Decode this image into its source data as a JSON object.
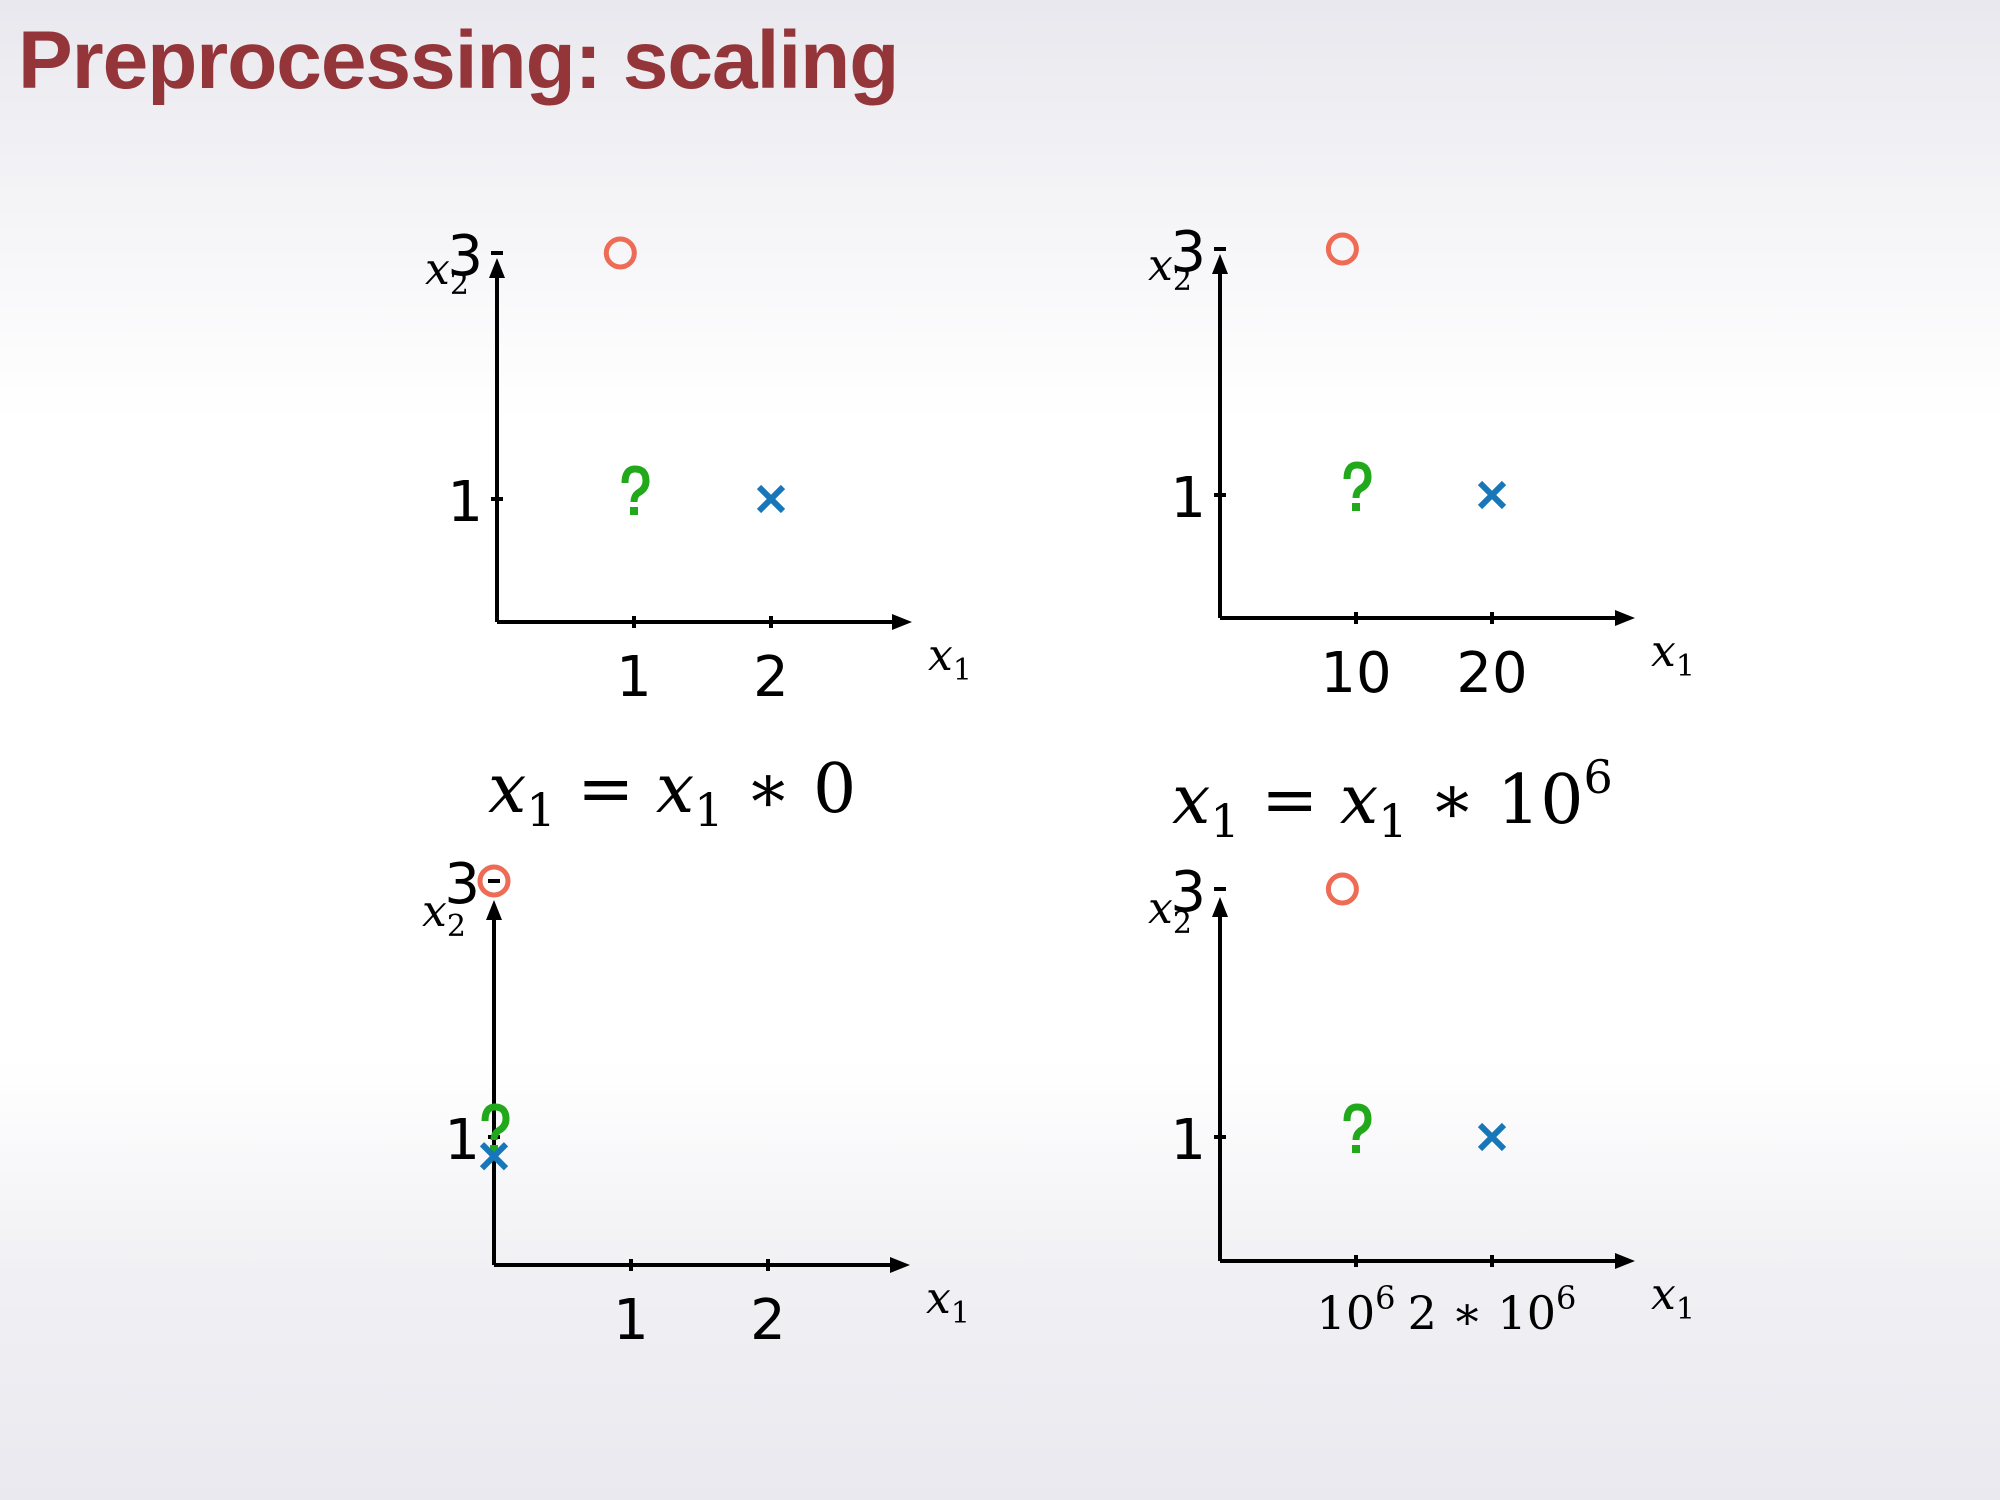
{
  "slide": {
    "title": "Preprocessing: scaling"
  },
  "equations": {
    "left": {
      "lhs": "x",
      "lhs_sub": "1",
      "op": " = ",
      "rhs": "x",
      "rhs_sub": "1",
      "tail": " ∗ 0",
      "tail_sup": ""
    },
    "right": {
      "lhs": "x",
      "lhs_sub": "1",
      "op": " = ",
      "rhs": "x",
      "rhs_sub": "1",
      "tail": " ∗ 10",
      "tail_sup": "6"
    }
  },
  "colors": {
    "circle": "#ee6b55",
    "cross": "#1777b8",
    "question": "#21a81b",
    "axis": "#000000"
  },
  "chart_data": [
    {
      "id": "top-left",
      "type": "scatter",
      "xlabel": "x1",
      "ylabel": "x2",
      "xlim": [
        0,
        3
      ],
      "ylim": [
        0,
        4
      ],
      "xticks": [
        {
          "v": 1,
          "label": "1"
        },
        {
          "v": 2,
          "label": "2"
        }
      ],
      "yticks": [
        {
          "v": 1,
          "label": "1"
        },
        {
          "v": 3,
          "label": "3"
        }
      ],
      "points": [
        {
          "name": "circle",
          "marker": "circle",
          "x": 0.9,
          "y": 3
        },
        {
          "name": "question",
          "marker": "question",
          "x": 1.0,
          "y": 1
        },
        {
          "name": "cross",
          "marker": "cross",
          "x": 2.0,
          "y": 1
        }
      ]
    },
    {
      "id": "top-right",
      "type": "scatter",
      "xlabel": "x1",
      "ylabel": "x2",
      "xlim": [
        0,
        30
      ],
      "ylim": [
        0,
        4
      ],
      "xticks": [
        {
          "v": 10,
          "label": "10"
        },
        {
          "v": 20,
          "label": "20"
        }
      ],
      "yticks": [
        {
          "v": 1,
          "label": "1"
        },
        {
          "v": 3,
          "label": "3"
        }
      ],
      "points": [
        {
          "name": "circle",
          "marker": "circle",
          "x": 9,
          "y": 3
        },
        {
          "name": "question",
          "marker": "question",
          "x": 10,
          "y": 1
        },
        {
          "name": "cross",
          "marker": "cross",
          "x": 20,
          "y": 1
        }
      ]
    },
    {
      "id": "bottom-left",
      "type": "scatter",
      "xlabel": "x1",
      "ylabel": "x2",
      "xlim": [
        0,
        3
      ],
      "ylim": [
        0,
        4
      ],
      "xticks": [
        {
          "v": 1,
          "label": "1"
        },
        {
          "v": 2,
          "label": "2"
        }
      ],
      "yticks": [
        {
          "v": 1,
          "label": "1"
        },
        {
          "v": 3,
          "label": "3"
        }
      ],
      "points": [
        {
          "name": "circle",
          "marker": "circle",
          "x": 0,
          "y": 3
        },
        {
          "name": "question",
          "marker": "question",
          "x": 0,
          "y": 1
        },
        {
          "name": "cross",
          "marker": "cross",
          "x": 0,
          "y": 0.85
        }
      ]
    },
    {
      "id": "bottom-right",
      "type": "scatter",
      "xlabel": "x1",
      "ylabel": "x2",
      "xlim": [
        0,
        3000000
      ],
      "ylim": [
        0,
        4
      ],
      "xticks": [
        {
          "v": 1000000,
          "label": "10",
          "sup": "6"
        },
        {
          "v": 2000000,
          "label": "2 ∗ 10",
          "sup": "6"
        }
      ],
      "yticks": [
        {
          "v": 1,
          "label": "1"
        },
        {
          "v": 3,
          "label": "3"
        }
      ],
      "points": [
        {
          "name": "circle",
          "marker": "circle",
          "x": 900000,
          "y": 3
        },
        {
          "name": "question",
          "marker": "question",
          "x": 1000000,
          "y": 1
        },
        {
          "name": "cross",
          "marker": "cross",
          "x": 2000000,
          "y": 1
        }
      ]
    }
  ]
}
